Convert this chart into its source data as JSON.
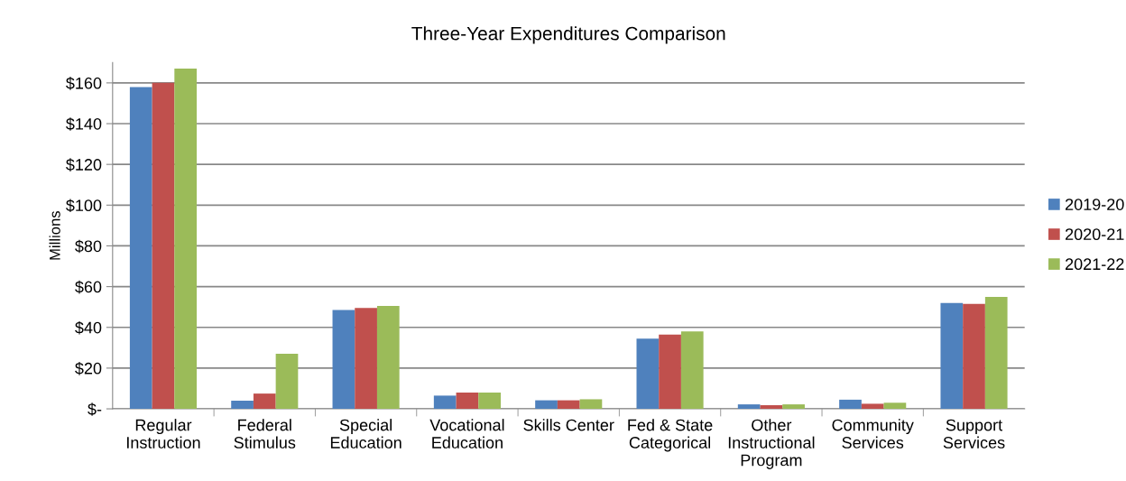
{
  "chart_data": {
    "type": "bar",
    "title": "Three-Year Expenditures Comparison",
    "ylabel": "Millions",
    "categories": [
      "Regular\nInstruction",
      "Federal\nStimulus",
      "Special\nEducation",
      "Vocational\nEducation",
      "Skills Center",
      "Fed & State\nCategorical",
      "Other\nInstructional\nProgram",
      "Community\nServices",
      "Support\nServices"
    ],
    "series": [
      {
        "name": "2019-20",
        "color": "#4f81bd",
        "values": [
          158,
          4,
          48.5,
          6.5,
          4.2,
          34.5,
          2.2,
          4.5,
          52
        ]
      },
      {
        "name": "2020-21",
        "color": "#c0504d",
        "values": [
          160,
          7.5,
          49.5,
          8,
          4.2,
          36.5,
          1.8,
          2.5,
          51.5
        ]
      },
      {
        "name": "2021-22",
        "color": "#9bbb59",
        "values": [
          167,
          27,
          50.5,
          8,
          4.7,
          38,
          2.2,
          3,
          55
        ]
      }
    ],
    "ylim": [
      0,
      170
    ],
    "yticks": [
      {
        "value": 0,
        "label": "$-"
      },
      {
        "value": 20,
        "label": "$20"
      },
      {
        "value": 40,
        "label": "$40"
      },
      {
        "value": 60,
        "label": "$60"
      },
      {
        "value": 80,
        "label": "$80"
      },
      {
        "value": 100,
        "label": "$100"
      },
      {
        "value": 120,
        "label": "$120"
      },
      {
        "value": 140,
        "label": "$140"
      },
      {
        "value": 160,
        "label": "$160"
      }
    ],
    "grid": "y",
    "legend": "right"
  }
}
